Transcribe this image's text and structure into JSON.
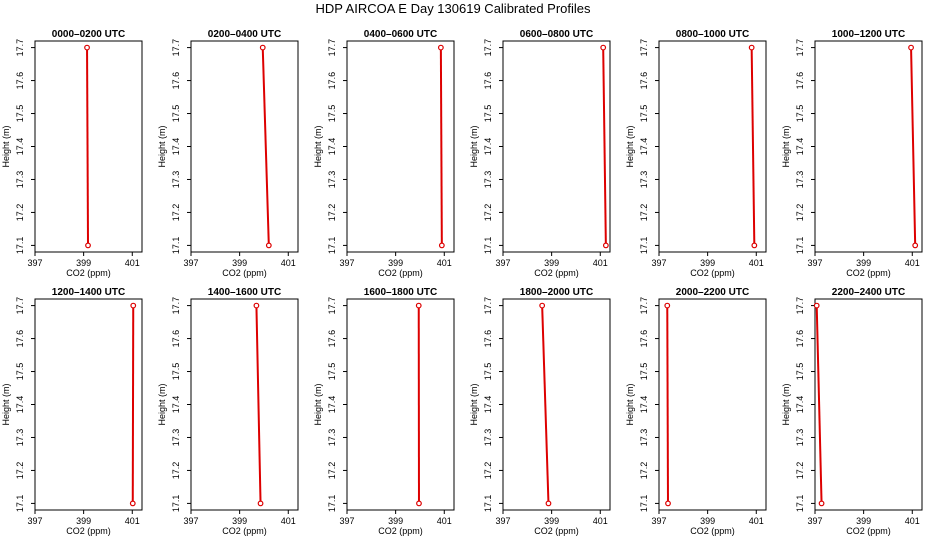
{
  "figure_title": "HDP AIRCOA E  Day 130619  Calibrated Profiles",
  "chart_data": [
    {
      "type": "line",
      "title": "0000–0200 UTC",
      "xlabel": "CO2 (ppm)",
      "ylabel": "Height (m)",
      "xlim": [
        397,
        401.4
      ],
      "ylim": [
        17.08,
        17.72
      ],
      "xticks": [
        397,
        399,
        401
      ],
      "yticks": [
        17.1,
        17.2,
        17.3,
        17.4,
        17.5,
        17.6,
        17.7
      ],
      "series": [
        {
          "points": [
            [
              399.14,
              17.7
            ],
            [
              399.18,
              17.1
            ]
          ]
        }
      ],
      "color": "#dd0000"
    },
    {
      "type": "line",
      "title": "0200–0400 UTC",
      "xlabel": "CO2 (ppm)",
      "ylabel": "Height (m)",
      "xlim": [
        397,
        401.4
      ],
      "ylim": [
        17.08,
        17.72
      ],
      "xticks": [
        397,
        399,
        401
      ],
      "yticks": [
        17.1,
        17.2,
        17.3,
        17.4,
        17.5,
        17.6,
        17.7
      ],
      "series": [
        {
          "points": [
            [
              399.95,
              17.7
            ],
            [
              400.2,
              17.1
            ]
          ]
        }
      ],
      "color": "#dd0000"
    },
    {
      "type": "line",
      "title": "0400–0600 UTC",
      "xlabel": "CO2 (ppm)",
      "ylabel": "Height (m)",
      "xlim": [
        397,
        401.4
      ],
      "ylim": [
        17.08,
        17.72
      ],
      "xticks": [
        397,
        399,
        401
      ],
      "yticks": [
        17.1,
        17.2,
        17.3,
        17.4,
        17.5,
        17.6,
        17.7
      ],
      "series": [
        {
          "points": [
            [
              400.86,
              17.7
            ],
            [
              400.9,
              17.1
            ]
          ]
        }
      ],
      "color": "#dd0000"
    },
    {
      "type": "line",
      "title": "0600–0800 UTC",
      "xlabel": "CO2 (ppm)",
      "ylabel": "Height (m)",
      "xlim": [
        397,
        401.4
      ],
      "ylim": [
        17.08,
        17.72
      ],
      "xticks": [
        397,
        399,
        401
      ],
      "yticks": [
        17.1,
        17.2,
        17.3,
        17.4,
        17.5,
        17.6,
        17.7
      ],
      "series": [
        {
          "points": [
            [
              401.12,
              17.7
            ],
            [
              401.23,
              17.1
            ]
          ]
        }
      ],
      "color": "#dd0000"
    },
    {
      "type": "line",
      "title": "0800–1000 UTC",
      "xlabel": "CO2 (ppm)",
      "ylabel": "Height (m)",
      "xlim": [
        397,
        401.4
      ],
      "ylim": [
        17.08,
        17.72
      ],
      "xticks": [
        397,
        399,
        401
      ],
      "yticks": [
        17.1,
        17.2,
        17.3,
        17.4,
        17.5,
        17.6,
        17.7
      ],
      "series": [
        {
          "points": [
            [
              400.81,
              17.7
            ],
            [
              400.92,
              17.1
            ]
          ]
        }
      ],
      "color": "#dd0000"
    },
    {
      "type": "line",
      "title": "1000–1200 UTC",
      "xlabel": "CO2 (ppm)",
      "ylabel": "Height (m)",
      "xlim": [
        397,
        401.4
      ],
      "ylim": [
        17.08,
        17.72
      ],
      "xticks": [
        397,
        399,
        401
      ],
      "yticks": [
        17.1,
        17.2,
        17.3,
        17.4,
        17.5,
        17.6,
        17.7
      ],
      "series": [
        {
          "points": [
            [
              400.95,
              17.7
            ],
            [
              401.12,
              17.1
            ]
          ]
        }
      ],
      "color": "#dd0000"
    },
    {
      "type": "line",
      "title": "1200–1400 UTC",
      "xlabel": "CO2 (ppm)",
      "ylabel": "Height (m)",
      "xlim": [
        397,
        401.4
      ],
      "ylim": [
        17.08,
        17.72
      ],
      "xticks": [
        397,
        399,
        401
      ],
      "yticks": [
        17.1,
        17.2,
        17.3,
        17.4,
        17.5,
        17.6,
        17.7
      ],
      "series": [
        {
          "points": [
            [
              401.04,
              17.7
            ],
            [
              401.02,
              17.1
            ]
          ]
        }
      ],
      "color": "#dd0000"
    },
    {
      "type": "line",
      "title": "1400–1600 UTC",
      "xlabel": "CO2 (ppm)",
      "ylabel": "Height (m)",
      "xlim": [
        397,
        401.4
      ],
      "ylim": [
        17.08,
        17.72
      ],
      "xticks": [
        397,
        399,
        401
      ],
      "yticks": [
        17.1,
        17.2,
        17.3,
        17.4,
        17.5,
        17.6,
        17.7
      ],
      "series": [
        {
          "points": [
            [
              399.69,
              17.7
            ],
            [
              399.86,
              17.1
            ]
          ]
        }
      ],
      "color": "#dd0000"
    },
    {
      "type": "line",
      "title": "1600–1800 UTC",
      "xlabel": "CO2 (ppm)",
      "ylabel": "Height (m)",
      "xlim": [
        397,
        401.4
      ],
      "ylim": [
        17.08,
        17.72
      ],
      "xticks": [
        397,
        399,
        401
      ],
      "yticks": [
        17.1,
        17.2,
        17.3,
        17.4,
        17.5,
        17.6,
        17.7
      ],
      "series": [
        {
          "points": [
            [
              399.95,
              17.7
            ],
            [
              399.96,
              17.1
            ]
          ]
        }
      ],
      "color": "#dd0000"
    },
    {
      "type": "line",
      "title": "1800–2000 UTC",
      "xlabel": "CO2 (ppm)",
      "ylabel": "Height (m)",
      "xlim": [
        397,
        401.4
      ],
      "ylim": [
        17.08,
        17.72
      ],
      "xticks": [
        397,
        399,
        401
      ],
      "yticks": [
        17.1,
        17.2,
        17.3,
        17.4,
        17.5,
        17.6,
        17.7
      ],
      "series": [
        {
          "points": [
            [
              398.61,
              17.7
            ],
            [
              398.87,
              17.1
            ]
          ]
        }
      ],
      "color": "#dd0000"
    },
    {
      "type": "line",
      "title": "2000–2200 UTC",
      "xlabel": "CO2 (ppm)",
      "ylabel": "Height (m)",
      "xlim": [
        397,
        401.4
      ],
      "ylim": [
        17.08,
        17.72
      ],
      "xticks": [
        397,
        399,
        401
      ],
      "yticks": [
        17.1,
        17.2,
        17.3,
        17.4,
        17.5,
        17.6,
        17.7
      ],
      "series": [
        {
          "points": [
            [
              397.34,
              17.7
            ],
            [
              397.37,
              17.1
            ]
          ]
        }
      ],
      "color": "#dd0000"
    },
    {
      "type": "line",
      "title": "2200–2400 UTC",
      "xlabel": "CO2 (ppm)",
      "ylabel": "Height (m)",
      "xlim": [
        397,
        401.4
      ],
      "ylim": [
        17.08,
        17.72
      ],
      "xticks": [
        397,
        399,
        401
      ],
      "yticks": [
        17.1,
        17.2,
        17.3,
        17.4,
        17.5,
        17.6,
        17.7
      ],
      "series": [
        {
          "points": [
            [
              397.07,
              17.7
            ],
            [
              397.27,
              17.1
            ]
          ]
        }
      ],
      "color": "#dd0000"
    }
  ]
}
